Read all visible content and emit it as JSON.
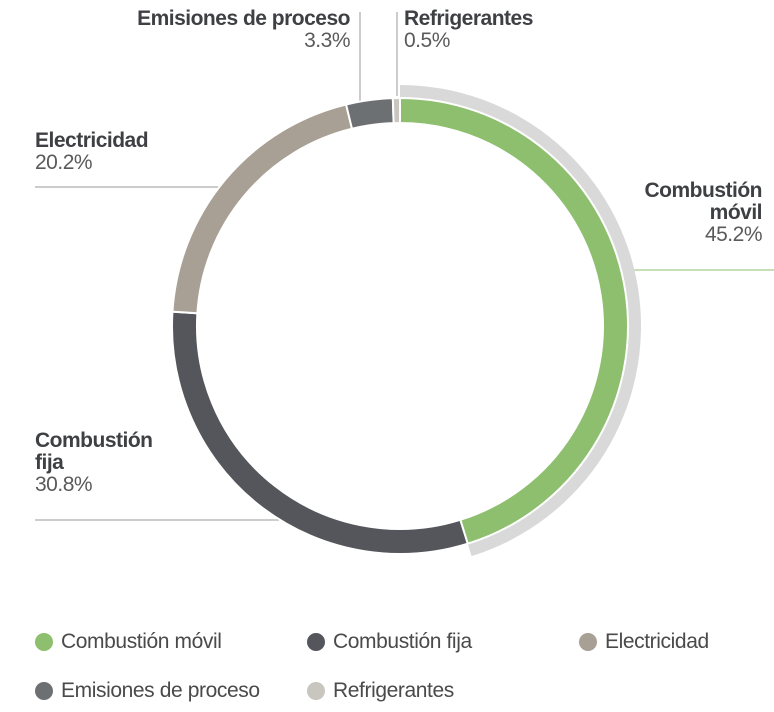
{
  "chart_data": {
    "type": "donut",
    "categories": [
      "Combustión móvil",
      "Combustión fija",
      "Electricidad",
      "Emisiones de proceso",
      "Refrigerantes"
    ],
    "values": [
      45.2,
      30.8,
      20.2,
      3.3,
      0.5
    ],
    "value_labels": [
      "45.2%",
      "30.8%",
      "20.2%",
      "3.3%",
      "0.5%"
    ],
    "colors": [
      "#8dbf6e",
      "#54565b",
      "#a89f95",
      "#6d7073",
      "#c9c5bf"
    ],
    "legend": "bottom"
  }
}
